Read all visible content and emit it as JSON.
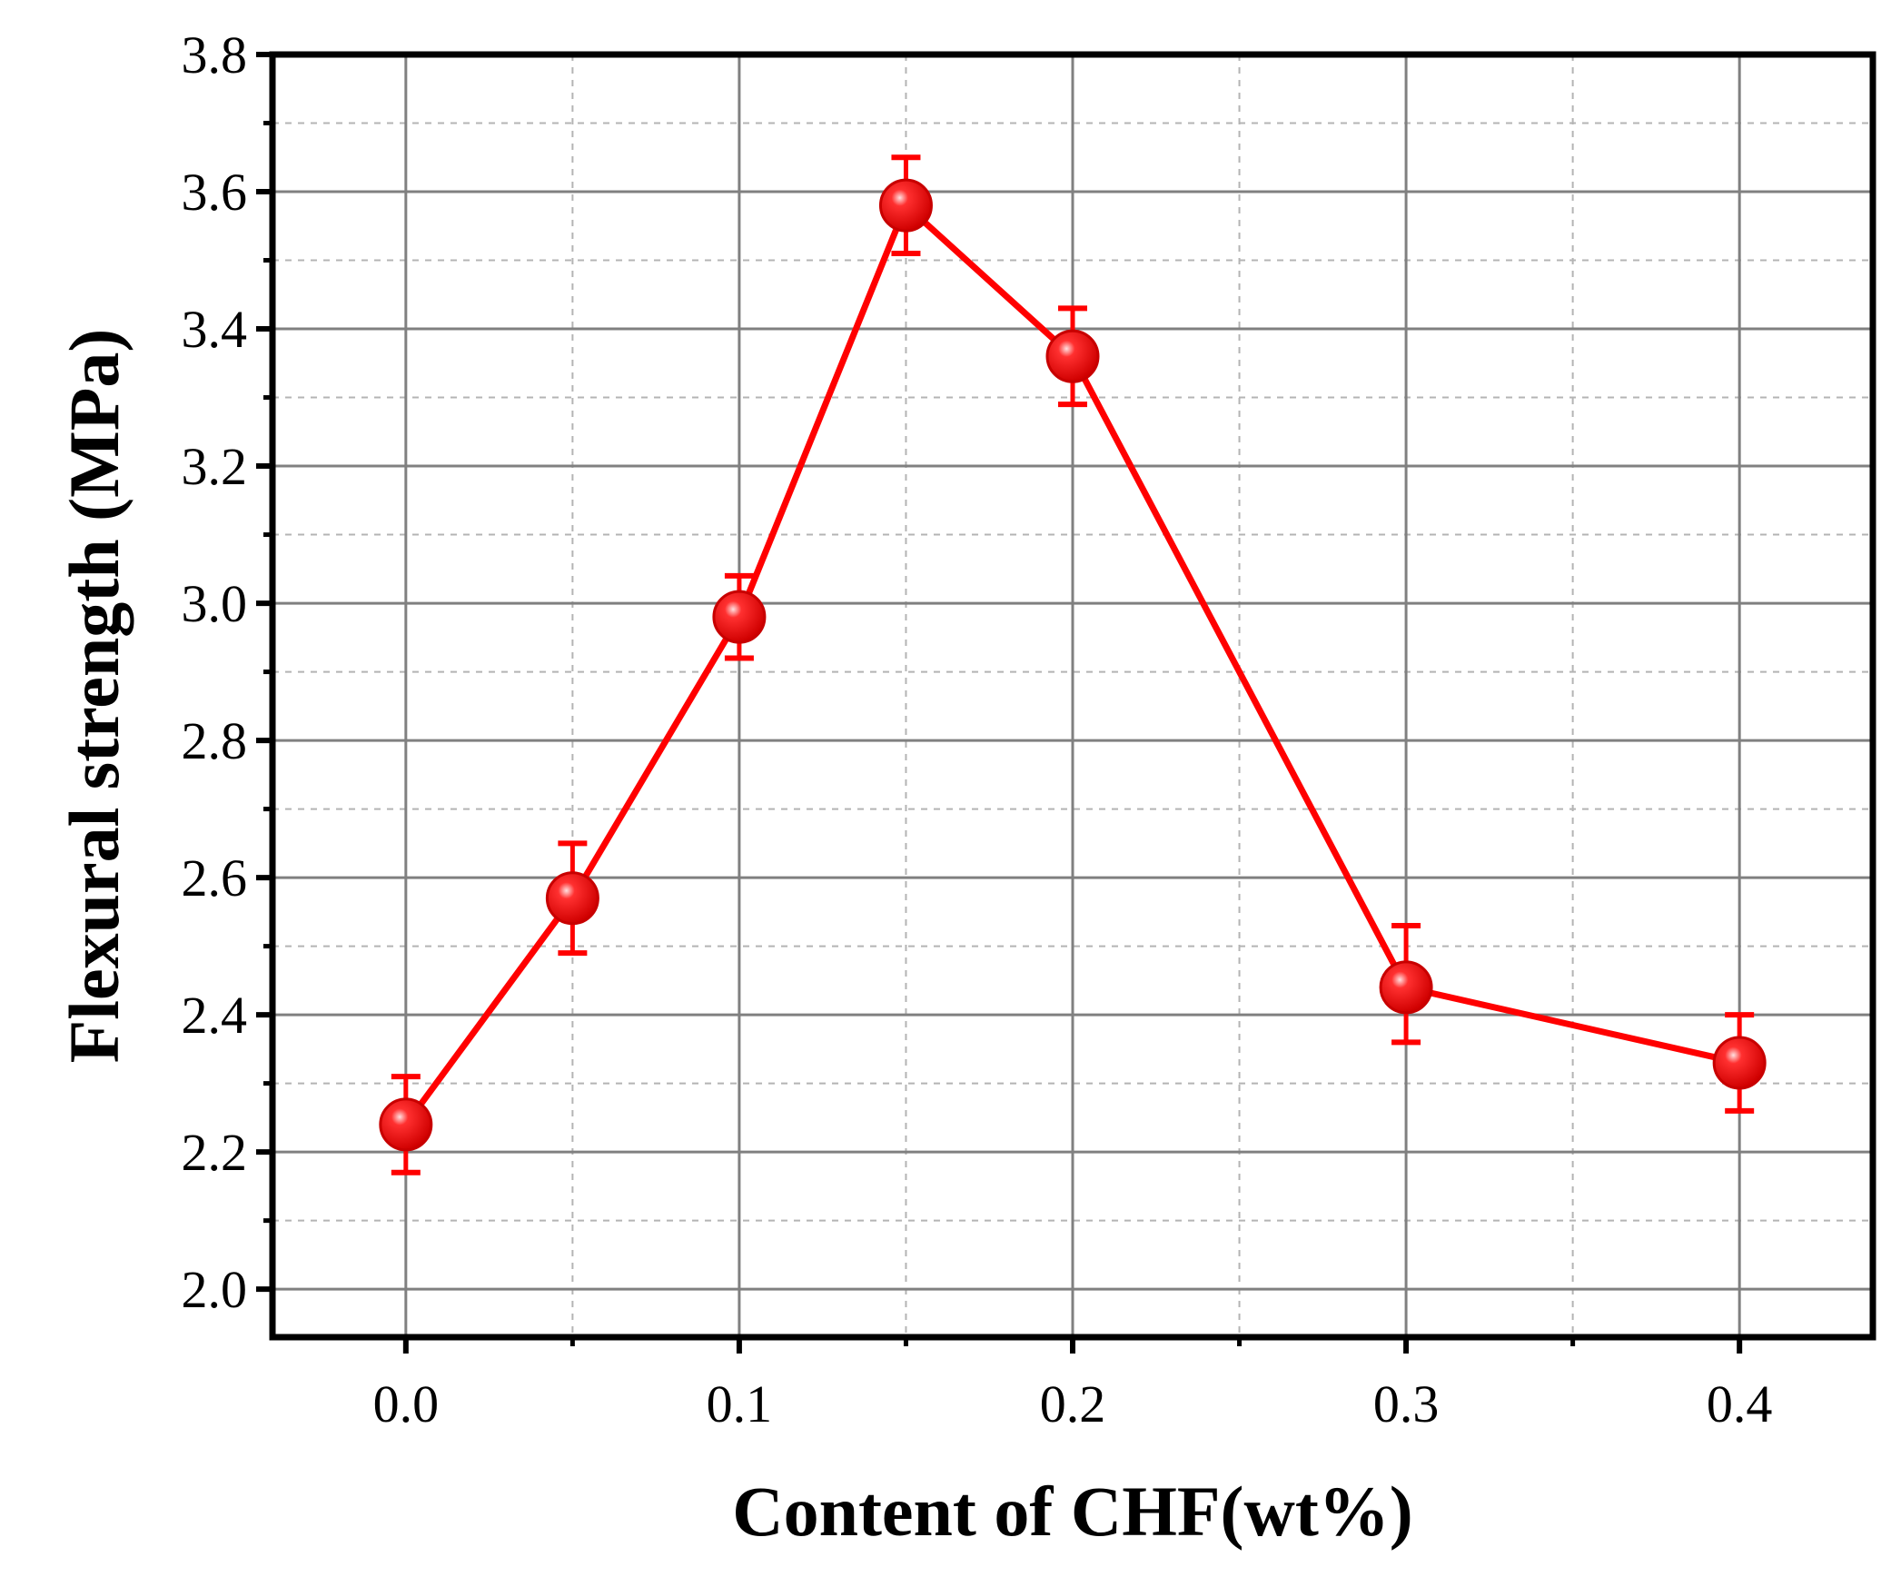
{
  "chart_data": {
    "type": "line",
    "title": "",
    "xlabel": "Content of CHF(wt%)",
    "ylabel": "Flexural strength (MPa)",
    "xlim": [
      -0.04,
      0.44
    ],
    "ylim": [
      1.93,
      3.8
    ],
    "x_ticks": [
      "0.0",
      "0.1",
      "0.2",
      "0.3",
      "0.4"
    ],
    "y_ticks": [
      "2.0",
      "2.2",
      "2.4",
      "2.6",
      "2.8",
      "3.0",
      "3.2",
      "3.4",
      "3.6",
      "3.8"
    ],
    "grid": true,
    "legend": "none",
    "series": [
      {
        "color": "#ff0000",
        "marker": "circle",
        "x": [
          0.0,
          0.05,
          0.1,
          0.15,
          0.2,
          0.3,
          0.4
        ],
        "y": [
          2.24,
          2.57,
          2.98,
          3.58,
          3.36,
          2.44,
          2.33
        ],
        "err_upper": [
          2.31,
          2.65,
          3.04,
          3.65,
          3.43,
          2.53,
          2.4
        ],
        "err_lower": [
          2.17,
          2.49,
          2.92,
          3.51,
          3.29,
          2.36,
          2.26
        ]
      }
    ]
  }
}
